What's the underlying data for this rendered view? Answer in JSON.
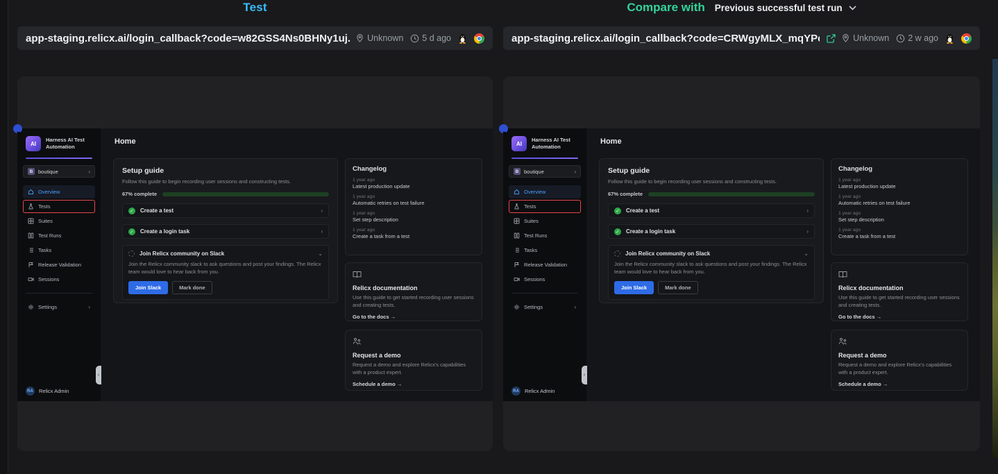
{
  "header": {
    "left_title": "Test",
    "right_title": "Compare with",
    "compare_value": "Previous successful test run"
  },
  "left": {
    "url": "app-staging.relicx.ai/login_callback?code=w82GSS4Ns0BHNy1uj...",
    "location": "Unknown",
    "age": "5 d ago"
  },
  "right": {
    "url": "app-staging.relicx.ai/login_callback?code=CRWgyMLX_mqYPe...",
    "location": "Unknown",
    "age": "2 w ago"
  },
  "colors": {
    "accent_cyan": "#38bdf8",
    "accent_teal": "#34d399",
    "progress_green": "#2ea84a",
    "highlight_red": "#e5484d",
    "active_nav_blue": "#4d9fff",
    "primary_button_blue": "#2e6be6"
  },
  "app": {
    "brand": {
      "line1": "Harness AI Test",
      "line2": "Automation"
    },
    "project": {
      "badge": "B",
      "name": "boutique"
    },
    "nav": [
      {
        "label": "Overview"
      },
      {
        "label": "Tests"
      },
      {
        "label": "Suites"
      },
      {
        "label": "Test Runs"
      },
      {
        "label": "Tasks"
      },
      {
        "label": "Release Validation"
      },
      {
        "label": "Sessions"
      }
    ],
    "settings": {
      "label": "Settings"
    },
    "user": {
      "initials": "RA",
      "name": "Relicx Admin"
    },
    "page_title": "Home",
    "setup": {
      "title": "Setup guide",
      "desc": "Follow this guide to begin recording user sessions and constructing tests.",
      "progress_label": "67% complete",
      "progress_pct": 67,
      "item1": "Create a test",
      "item2": "Create a login task",
      "slack": {
        "title": "Join Relicx community on Slack",
        "desc": "Join the Relicx community slack to ask questions and post your findings. The Relicx team would love to hear back from you.",
        "join": "Join Slack",
        "mark": "Mark done"
      }
    },
    "changelog": {
      "title": "Changelog",
      "entries": [
        {
          "time": "1 year ago",
          "title": "Latest production update"
        },
        {
          "time": "1 year ago",
          "title": "Automatic retries on test failure"
        },
        {
          "time": "1 year ago",
          "title": "Set step description"
        },
        {
          "time": "1 year ago",
          "title": "Create a task from a test"
        }
      ]
    },
    "docs": {
      "title": "Relicx documentation",
      "desc": "Use this guide to get started recording user sessions and creating tests.",
      "link": "Go to the docs →"
    },
    "demo": {
      "title": "Request a demo",
      "desc": "Request a demo and explore Relicx's capabilities with a product expert.",
      "link": "Schedule a demo →"
    }
  }
}
